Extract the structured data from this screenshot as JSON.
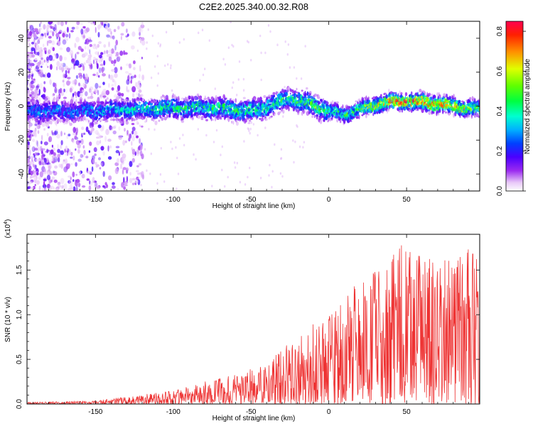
{
  "title": "C2E2.2025.340.00.32.R08",
  "chart_data": [
    {
      "type": "heatmap",
      "xlabel": "Height of straight line (km)",
      "ylabel": "Frequency (Hz)",
      "xlim": [
        -194,
        97
      ],
      "ylim": [
        -50,
        50
      ],
      "xticks": [
        -150,
        -100,
        -50,
        0,
        50
      ],
      "yticks": [
        -40,
        -20,
        0,
        20,
        40
      ],
      "colorbar": {
        "label": "Normalized spectral amplitude",
        "range": [
          0.0,
          0.85
        ],
        "ticks": [
          "0.0",
          "0.2",
          "0.4",
          "0.6",
          "0.8"
        ],
        "tick_values": [
          0.0,
          0.2,
          0.4,
          0.6,
          0.8
        ]
      },
      "ridge": {
        "description": "dominant frequency band vs height",
        "x": [
          -194,
          -160,
          -125,
          -100,
          -75,
          -50,
          -35,
          -25,
          -15,
          -5,
          0,
          10,
          20,
          35,
          50,
          65,
          80,
          97
        ],
        "frequency": [
          -3,
          -3,
          -2,
          -1,
          -1,
          -3,
          1,
          5,
          2,
          -1,
          -3,
          -5,
          -2,
          2,
          3,
          2,
          0,
          -2
        ],
        "peak_amplitude": [
          0.3,
          0.3,
          0.4,
          0.45,
          0.45,
          0.45,
          0.45,
          0.45,
          0.5,
          0.5,
          0.45,
          0.45,
          0.55,
          0.7,
          0.85,
          0.8,
          0.7,
          0.55
        ]
      }
    },
    {
      "type": "line",
      "xlabel": "Height of straight line (km)",
      "ylabel": "SNR (10 * v/v)",
      "y_multiplier": "(x10",
      "y_multiplier_exp": "4",
      "y_multiplier_close": ")",
      "xlim": [
        -194,
        97
      ],
      "ylim": [
        0,
        1.9
      ],
      "xticks": [
        -150,
        -100,
        -50,
        0,
        50
      ],
      "yticks": [
        "0.0",
        "0.5",
        "1.0",
        "1.5"
      ],
      "ytick_values": [
        0.0,
        0.5,
        1.0,
        1.5
      ],
      "color": "#ee3333",
      "envelope": {
        "x": [
          -194,
          -150,
          -130,
          -100,
          -80,
          -60,
          -40,
          -25,
          -10,
          0,
          15,
          30,
          50,
          70,
          97
        ],
        "max": [
          0.02,
          0.04,
          0.08,
          0.15,
          0.25,
          0.33,
          0.45,
          0.7,
          0.95,
          1.0,
          1.3,
          1.5,
          1.85,
          1.6,
          1.8
        ]
      }
    }
  ]
}
